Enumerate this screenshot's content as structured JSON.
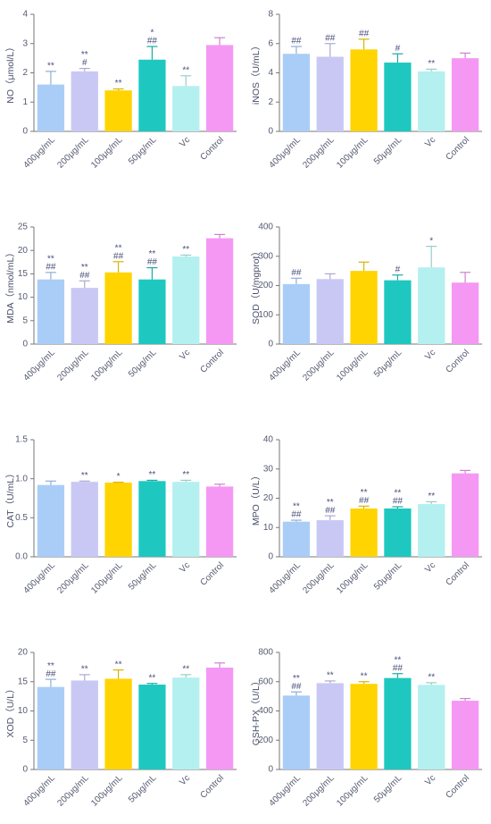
{
  "chart_data": [
    {
      "type": "bar",
      "ylabel": "NO（μmol/L）",
      "categories": [
        "400μg/mL",
        "200μg/mL",
        "100μg/mL",
        "50μg/mL",
        "Vc",
        "Control"
      ],
      "colors": [
        "#a9cdf7",
        "#c9c8f5",
        "#ffd400",
        "#1ec8c0",
        "#b4f0ef",
        "#f598f4"
      ],
      "values": [
        1.6,
        2.05,
        1.4,
        2.45,
        1.55,
        2.95
      ],
      "errors": [
        0.45,
        0.1,
        0.05,
        0.45,
        0.35,
        0.25
      ],
      "annotations": [
        [
          "**"
        ],
        [
          "**",
          "#"
        ],
        [
          "**"
        ],
        [
          "*",
          "##"
        ],
        [
          "**"
        ],
        null
      ],
      "ylim": [
        0,
        4
      ],
      "yticks": [
        0,
        1,
        2,
        3,
        4
      ]
    },
    {
      "type": "bar",
      "ylabel": "iNOS（U/mL）",
      "categories": [
        "400μg/mL",
        "200μg/mL",
        "100μg/mL",
        "50μg/mL",
        "Vc",
        "Control"
      ],
      "colors": [
        "#a9cdf7",
        "#c9c8f5",
        "#ffd400",
        "#1ec8c0",
        "#b4f0ef",
        "#f598f4"
      ],
      "values": [
        5.3,
        5.1,
        5.6,
        4.7,
        4.1,
        5.0
      ],
      "errors": [
        0.5,
        0.9,
        0.7,
        0.6,
        0.15,
        0.35
      ],
      "annotations": [
        [
          "##"
        ],
        [
          "##"
        ],
        [
          "##"
        ],
        [
          "#"
        ],
        [
          "**"
        ],
        null
      ],
      "ylim": [
        0,
        8
      ],
      "yticks": [
        0,
        2,
        4,
        6,
        8
      ]
    },
    {
      "type": "bar",
      "ylabel": "MDA（nmol/mL）",
      "categories": [
        "400μg/mL",
        "200μg/mL",
        "100μg/mL",
        "50μg/mL",
        "Vc",
        "Control"
      ],
      "colors": [
        "#a9cdf7",
        "#c9c8f5",
        "#ffd400",
        "#1ec8c0",
        "#b4f0ef",
        "#f598f4"
      ],
      "values": [
        13.8,
        12.0,
        15.3,
        13.8,
        18.7,
        22.6
      ],
      "errors": [
        1.5,
        1.5,
        2.3,
        2.5,
        0.3,
        0.8
      ],
      "annotations": [
        [
          "**",
          "##"
        ],
        [
          "**",
          "##"
        ],
        [
          "**",
          "##"
        ],
        [
          "**",
          "##"
        ],
        [
          "**"
        ],
        null
      ],
      "ylim": [
        0,
        25
      ],
      "yticks": [
        0,
        5,
        10,
        15,
        20,
        25
      ]
    },
    {
      "type": "bar",
      "ylabel": "SOD（U/mgprot）",
      "categories": [
        "400μg/mL",
        "200μg/mL",
        "100μg/mL",
        "50μg/mL",
        "Vc",
        "Control"
      ],
      "colors": [
        "#a9cdf7",
        "#c9c8f5",
        "#ffd400",
        "#1ec8c0",
        "#b4f0ef",
        "#f598f4"
      ],
      "values": [
        205,
        222,
        250,
        218,
        262,
        210
      ],
      "errors": [
        20,
        18,
        30,
        18,
        72,
        35
      ],
      "annotations": [
        [
          "##"
        ],
        null,
        null,
        [
          "#"
        ],
        [
          "*"
        ],
        null
      ],
      "ylim": [
        0,
        400
      ],
      "yticks": [
        0,
        100,
        200,
        300,
        400
      ]
    },
    {
      "type": "bar",
      "ylabel": "CAT（U/mL）",
      "categories": [
        "400μg/mL",
        "200μg/mL",
        "100μg/mL",
        "50μg/mL",
        "Vc",
        "Control"
      ],
      "colors": [
        "#a9cdf7",
        "#c9c8f5",
        "#ffd400",
        "#1ec8c0",
        "#b4f0ef",
        "#f598f4"
      ],
      "values": [
        0.92,
        0.96,
        0.95,
        0.97,
        0.96,
        0.9
      ],
      "errors": [
        0.05,
        0.01,
        0.005,
        0.01,
        0.02,
        0.03
      ],
      "annotations": [
        null,
        [
          "**"
        ],
        [
          "*"
        ],
        [
          "**"
        ],
        [
          "**"
        ],
        null
      ],
      "ylim": [
        0,
        1.5
      ],
      "yticks": [
        {
          "value": 0,
          "label": "0.0"
        },
        0.5,
        {
          "value": 1,
          "label": "1.0"
        },
        1.5
      ]
    },
    {
      "type": "bar",
      "ylabel": "MPO（U/L）",
      "categories": [
        "400μg/mL",
        "200μg/mL",
        "100μg/mL",
        "50μg/mL",
        "Vc",
        "Control"
      ],
      "colors": [
        "#a9cdf7",
        "#c9c8f5",
        "#ffd400",
        "#1ec8c0",
        "#b4f0ef",
        "#f598f4"
      ],
      "values": [
        12,
        12.5,
        16.5,
        16.5,
        18,
        28.5
      ],
      "errors": [
        0.5,
        1.5,
        0.8,
        0.6,
        0.8,
        1.0
      ],
      "annotations": [
        [
          "**",
          "##"
        ],
        [
          "**",
          "##"
        ],
        [
          "**",
          "##"
        ],
        [
          "**",
          "##"
        ],
        [
          "**"
        ],
        null
      ],
      "ylim": [
        0,
        40
      ],
      "yticks": [
        0,
        10,
        20,
        30,
        40
      ]
    },
    {
      "type": "bar",
      "ylabel": "XOD（U/L）",
      "categories": [
        "400μg/mL",
        "200μg/mL",
        "100μg/mL",
        "50μg/mL",
        "Vc",
        "Control"
      ],
      "colors": [
        "#a9cdf7",
        "#c9c8f5",
        "#ffd400",
        "#1ec8c0",
        "#b4f0ef",
        "#f598f4"
      ],
      "values": [
        14.1,
        15.2,
        15.5,
        14.5,
        15.7,
        17.4
      ],
      "errors": [
        1.3,
        1.0,
        1.5,
        0.2,
        0.5,
        0.8
      ],
      "annotations": [
        [
          "**",
          "##"
        ],
        [
          "**"
        ],
        [
          "**"
        ],
        [
          "**"
        ],
        [
          "**"
        ],
        null
      ],
      "ylim": [
        0,
        20
      ],
      "yticks": [
        0,
        5,
        10,
        15,
        20
      ]
    },
    {
      "type": "bar",
      "ylabel": "GSH-PX（U/L）",
      "categories": [
        "400μg/mL",
        "200μg/mL",
        "100μg/mL",
        "50μg/mL",
        "Vc",
        "Control"
      ],
      "colors": [
        "#a9cdf7",
        "#c9c8f5",
        "#ffd400",
        "#1ec8c0",
        "#b4f0ef",
        "#f598f4"
      ],
      "values": [
        505,
        590,
        585,
        625,
        578,
        470
      ],
      "errors": [
        25,
        15,
        15,
        30,
        15,
        15
      ],
      "annotations": [
        [
          "**",
          "##"
        ],
        [
          "**"
        ],
        [
          "**"
        ],
        [
          "**",
          "##"
        ],
        [
          "**"
        ],
        null
      ],
      "ylim": [
        0,
        800
      ],
      "yticks": [
        0,
        200,
        400,
        600,
        800
      ]
    }
  ]
}
